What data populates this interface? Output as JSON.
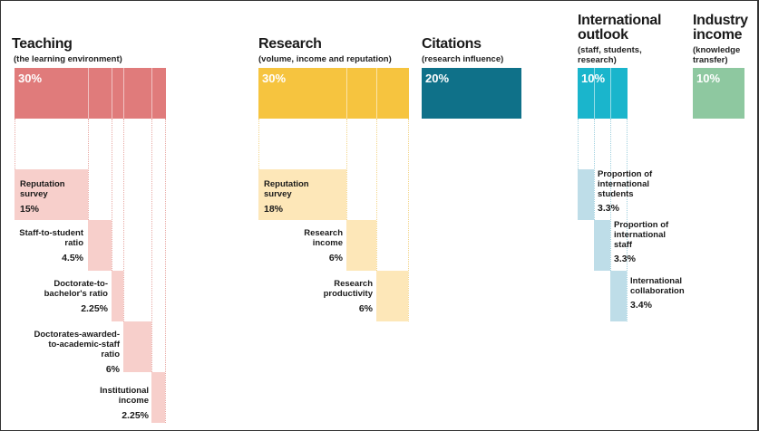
{
  "teaching": {
    "title": "Teaching",
    "subtitle": "(the learning environment)",
    "percent": "30%",
    "color": "#e07b7b",
    "subcolor": "#f7cfcb",
    "items": [
      {
        "label": "Reputation\nsurvey",
        "value": "15%"
      },
      {
        "label": "Staff-to-student\nratio",
        "value": "4.5%"
      },
      {
        "label": "Doctorate-to-\nbachelor's ratio",
        "value": "2.25%"
      },
      {
        "label": "Doctorates-awarded-\nto-academic-staff\nratio",
        "value": "6%"
      },
      {
        "label": "Institutional\nincome",
        "value": "2.25%"
      }
    ]
  },
  "research": {
    "title": "Research",
    "subtitle": "(volume, income and reputation)",
    "percent": "30%",
    "color": "#f6c43f",
    "subcolor": "#fde7b8",
    "items": [
      {
        "label": "Reputation\nsurvey",
        "value": "18%"
      },
      {
        "label": "Research\nincome",
        "value": "6%"
      },
      {
        "label": "Research\nproductivity",
        "value": "6%"
      }
    ]
  },
  "citations": {
    "title": "Citations",
    "subtitle": "(research influence)",
    "percent": "20%",
    "color": "#0f7189"
  },
  "international": {
    "title": "International\noutlook",
    "subtitle": "(staff, students,\nresearch)",
    "percent": "10%",
    "color": "#1ab5cc",
    "subcolor": "#bedde8",
    "items": [
      {
        "label": "Proportion of\ninternational\nstudents",
        "value": "3.3%"
      },
      {
        "label": "Proportion of\ninternational\nstaff",
        "value": "3.3%"
      },
      {
        "label": "International\ncollaboration",
        "value": "3.4%"
      }
    ]
  },
  "industry": {
    "title": "Industry\nincome",
    "subtitle": "(knowledge\ntransfer)",
    "percent": "10%",
    "color": "#8ec8a0"
  }
}
